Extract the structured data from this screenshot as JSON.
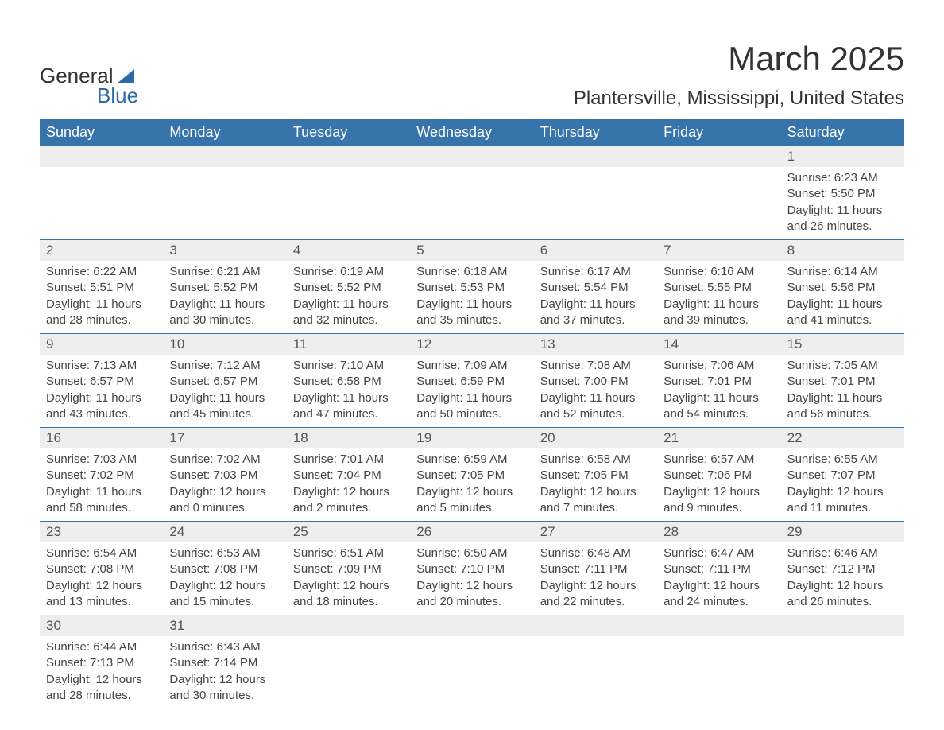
{
  "logo": {
    "main": "General",
    "sub": "Blue"
  },
  "title": "March 2025",
  "location": "Plantersville, Mississippi, United States",
  "colors": {
    "header_bg": "#3774ab",
    "header_text": "#ffffff",
    "daynum_bg": "#eeeeee",
    "border": "#3774ab",
    "logo_accent": "#2a6ca8",
    "body_text": "#444444"
  },
  "weekdays": [
    "Sunday",
    "Monday",
    "Tuesday",
    "Wednesday",
    "Thursday",
    "Friday",
    "Saturday"
  ],
  "weeks": [
    [
      null,
      null,
      null,
      null,
      null,
      null,
      {
        "n": "1",
        "sunrise": "Sunrise: 6:23 AM",
        "sunset": "Sunset: 5:50 PM",
        "day": "Daylight: 11 hours and 26 minutes."
      }
    ],
    [
      {
        "n": "2",
        "sunrise": "Sunrise: 6:22 AM",
        "sunset": "Sunset: 5:51 PM",
        "day": "Daylight: 11 hours and 28 minutes."
      },
      {
        "n": "3",
        "sunrise": "Sunrise: 6:21 AM",
        "sunset": "Sunset: 5:52 PM",
        "day": "Daylight: 11 hours and 30 minutes."
      },
      {
        "n": "4",
        "sunrise": "Sunrise: 6:19 AM",
        "sunset": "Sunset: 5:52 PM",
        "day": "Daylight: 11 hours and 32 minutes."
      },
      {
        "n": "5",
        "sunrise": "Sunrise: 6:18 AM",
        "sunset": "Sunset: 5:53 PM",
        "day": "Daylight: 11 hours and 35 minutes."
      },
      {
        "n": "6",
        "sunrise": "Sunrise: 6:17 AM",
        "sunset": "Sunset: 5:54 PM",
        "day": "Daylight: 11 hours and 37 minutes."
      },
      {
        "n": "7",
        "sunrise": "Sunrise: 6:16 AM",
        "sunset": "Sunset: 5:55 PM",
        "day": "Daylight: 11 hours and 39 minutes."
      },
      {
        "n": "8",
        "sunrise": "Sunrise: 6:14 AM",
        "sunset": "Sunset: 5:56 PM",
        "day": "Daylight: 11 hours and 41 minutes."
      }
    ],
    [
      {
        "n": "9",
        "sunrise": "Sunrise: 7:13 AM",
        "sunset": "Sunset: 6:57 PM",
        "day": "Daylight: 11 hours and 43 minutes."
      },
      {
        "n": "10",
        "sunrise": "Sunrise: 7:12 AM",
        "sunset": "Sunset: 6:57 PM",
        "day": "Daylight: 11 hours and 45 minutes."
      },
      {
        "n": "11",
        "sunrise": "Sunrise: 7:10 AM",
        "sunset": "Sunset: 6:58 PM",
        "day": "Daylight: 11 hours and 47 minutes."
      },
      {
        "n": "12",
        "sunrise": "Sunrise: 7:09 AM",
        "sunset": "Sunset: 6:59 PM",
        "day": "Daylight: 11 hours and 50 minutes."
      },
      {
        "n": "13",
        "sunrise": "Sunrise: 7:08 AM",
        "sunset": "Sunset: 7:00 PM",
        "day": "Daylight: 11 hours and 52 minutes."
      },
      {
        "n": "14",
        "sunrise": "Sunrise: 7:06 AM",
        "sunset": "Sunset: 7:01 PM",
        "day": "Daylight: 11 hours and 54 minutes."
      },
      {
        "n": "15",
        "sunrise": "Sunrise: 7:05 AM",
        "sunset": "Sunset: 7:01 PM",
        "day": "Daylight: 11 hours and 56 minutes."
      }
    ],
    [
      {
        "n": "16",
        "sunrise": "Sunrise: 7:03 AM",
        "sunset": "Sunset: 7:02 PM",
        "day": "Daylight: 11 hours and 58 minutes."
      },
      {
        "n": "17",
        "sunrise": "Sunrise: 7:02 AM",
        "sunset": "Sunset: 7:03 PM",
        "day": "Daylight: 12 hours and 0 minutes."
      },
      {
        "n": "18",
        "sunrise": "Sunrise: 7:01 AM",
        "sunset": "Sunset: 7:04 PM",
        "day": "Daylight: 12 hours and 2 minutes."
      },
      {
        "n": "19",
        "sunrise": "Sunrise: 6:59 AM",
        "sunset": "Sunset: 7:05 PM",
        "day": "Daylight: 12 hours and 5 minutes."
      },
      {
        "n": "20",
        "sunrise": "Sunrise: 6:58 AM",
        "sunset": "Sunset: 7:05 PM",
        "day": "Daylight: 12 hours and 7 minutes."
      },
      {
        "n": "21",
        "sunrise": "Sunrise: 6:57 AM",
        "sunset": "Sunset: 7:06 PM",
        "day": "Daylight: 12 hours and 9 minutes."
      },
      {
        "n": "22",
        "sunrise": "Sunrise: 6:55 AM",
        "sunset": "Sunset: 7:07 PM",
        "day": "Daylight: 12 hours and 11 minutes."
      }
    ],
    [
      {
        "n": "23",
        "sunrise": "Sunrise: 6:54 AM",
        "sunset": "Sunset: 7:08 PM",
        "day": "Daylight: 12 hours and 13 minutes."
      },
      {
        "n": "24",
        "sunrise": "Sunrise: 6:53 AM",
        "sunset": "Sunset: 7:08 PM",
        "day": "Daylight: 12 hours and 15 minutes."
      },
      {
        "n": "25",
        "sunrise": "Sunrise: 6:51 AM",
        "sunset": "Sunset: 7:09 PM",
        "day": "Daylight: 12 hours and 18 minutes."
      },
      {
        "n": "26",
        "sunrise": "Sunrise: 6:50 AM",
        "sunset": "Sunset: 7:10 PM",
        "day": "Daylight: 12 hours and 20 minutes."
      },
      {
        "n": "27",
        "sunrise": "Sunrise: 6:48 AM",
        "sunset": "Sunset: 7:11 PM",
        "day": "Daylight: 12 hours and 22 minutes."
      },
      {
        "n": "28",
        "sunrise": "Sunrise: 6:47 AM",
        "sunset": "Sunset: 7:11 PM",
        "day": "Daylight: 12 hours and 24 minutes."
      },
      {
        "n": "29",
        "sunrise": "Sunrise: 6:46 AM",
        "sunset": "Sunset: 7:12 PM",
        "day": "Daylight: 12 hours and 26 minutes."
      }
    ],
    [
      {
        "n": "30",
        "sunrise": "Sunrise: 6:44 AM",
        "sunset": "Sunset: 7:13 PM",
        "day": "Daylight: 12 hours and 28 minutes."
      },
      {
        "n": "31",
        "sunrise": "Sunrise: 6:43 AM",
        "sunset": "Sunset: 7:14 PM",
        "day": "Daylight: 12 hours and 30 minutes."
      },
      null,
      null,
      null,
      null,
      null
    ]
  ]
}
